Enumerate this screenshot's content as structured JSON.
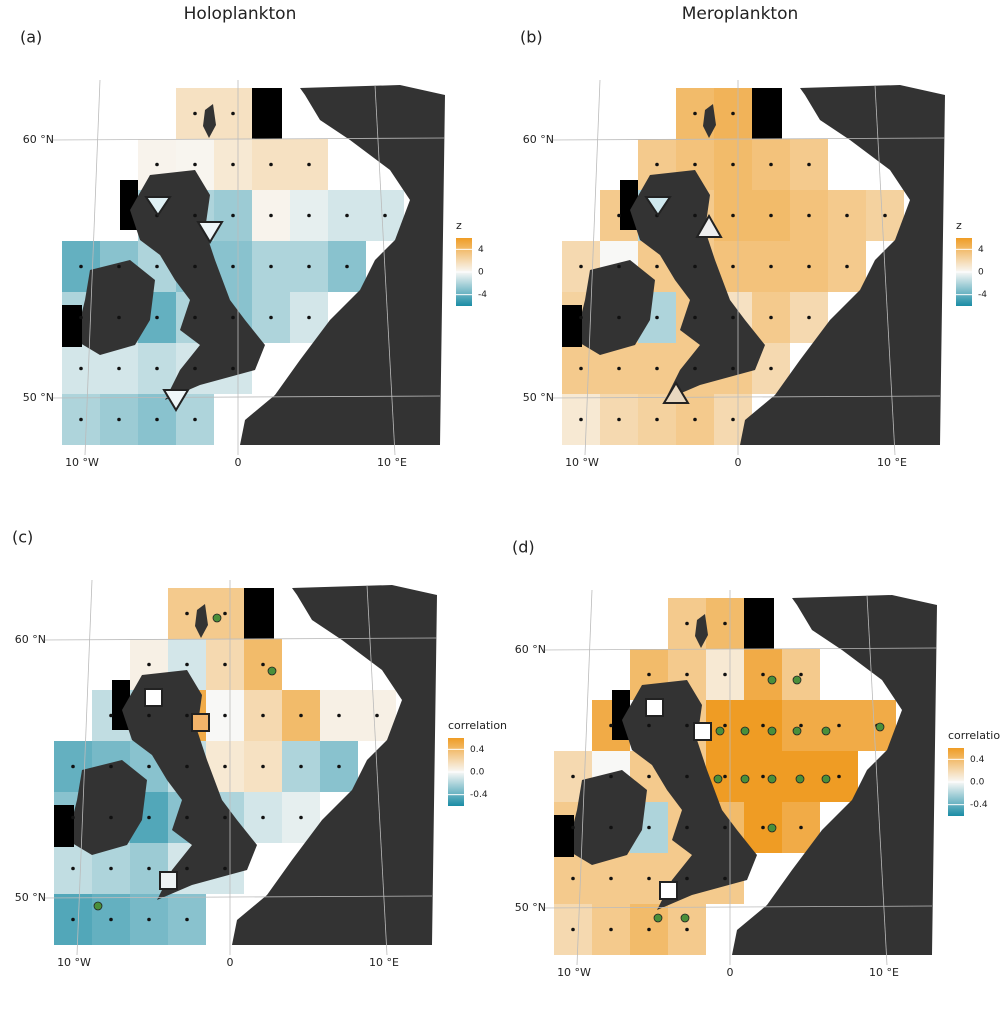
{
  "header": {
    "columns": [
      "Holoplankton",
      "Meroplankton"
    ]
  },
  "panels": [
    {
      "label": "(a)",
      "legend": {
        "title": "z",
        "limits": [
          -6,
          6
        ],
        "ticks": [
          4,
          0,
          -4
        ]
      },
      "axes": {
        "lat_labels": [
          "60 °N",
          "50 °N"
        ],
        "lon_labels": [
          "10 °W",
          "0",
          "10 °E"
        ]
      },
      "cells": [
        [
          null,
          null,
          null,
          1.5,
          1.5,
          null,
          null,
          null,
          null
        ],
        [
          null,
          null,
          0.3,
          0.2,
          1,
          1.5,
          1.5,
          null,
          null
        ],
        [
          null,
          null,
          -2,
          -2,
          -2.5,
          0.3,
          -0.5,
          -1,
          -1
        ],
        [
          -4,
          -3,
          -2,
          -3,
          -3,
          -2,
          -2,
          -3,
          null
        ],
        [
          -2,
          -2,
          -4,
          -2,
          -3,
          -2,
          -1,
          null,
          null
        ],
        [
          -1,
          -1,
          -1.5,
          -1,
          -1,
          null,
          null,
          null,
          null
        ],
        [
          -2,
          -2.5,
          -3,
          -2,
          null,
          null,
          null,
          null,
          null
        ]
      ]
    },
    {
      "label": "(b)",
      "legend": {
        "title": "z",
        "limits": [
          -6,
          6
        ],
        "ticks": [
          4,
          0,
          -4
        ]
      },
      "axes": {
        "lat_labels": [
          "60 °N",
          "50 °N"
        ],
        "lon_labels": [
          "10 °W",
          "0",
          "10 °E"
        ]
      },
      "cells": [
        [
          null,
          null,
          null,
          4,
          4.5,
          null,
          null,
          null,
          null
        ],
        [
          null,
          null,
          3,
          3.5,
          4,
          3.5,
          3,
          null,
          null
        ],
        [
          null,
          3,
          -2,
          3,
          4,
          4,
          3.5,
          3,
          2.5
        ],
        [
          2,
          0,
          3,
          3,
          3.5,
          3.5,
          3.5,
          3,
          null
        ],
        [
          2.5,
          2.5,
          -2,
          3,
          1.5,
          3,
          2,
          null,
          null
        ],
        [
          3,
          3,
          3,
          3,
          3,
          2,
          null,
          null,
          null
        ],
        [
          1,
          2,
          2.5,
          3,
          2,
          null,
          null,
          null,
          null
        ]
      ]
    },
    {
      "label": "(c)",
      "legend": {
        "title": "correlation",
        "limits": [
          -0.6,
          0.6
        ],
        "ticks": [
          0.4,
          {
            "value": 0,
            "label": "0.0"
          },
          -0.4
        ]
      },
      "axes": {
        "lat_labels": [
          "60 °N",
          "50 °N"
        ],
        "lon_labels": [
          "10 °W",
          "0",
          "10 °E"
        ]
      },
      "cells": [
        [
          null,
          null,
          null,
          0.3,
          0.3,
          null,
          null,
          null,
          null
        ],
        [
          null,
          null,
          0.05,
          -0.1,
          0.2,
          0.4,
          null,
          null,
          null
        ],
        [
          null,
          -0.15,
          -0.2,
          0.5,
          0,
          0.2,
          0.4,
          0.05,
          0.05
        ],
        [
          -0.4,
          -0.35,
          -0.3,
          -0.15,
          0.1,
          0.15,
          -0.2,
          -0.3,
          null
        ],
        [
          -0.3,
          -0.3,
          -0.45,
          -0.3,
          -0.2,
          -0.1,
          -0.05,
          null,
          null
        ],
        [
          -0.15,
          -0.2,
          -0.25,
          -0.1,
          -0.1,
          null,
          null,
          null,
          null
        ],
        [
          -0.45,
          -0.4,
          -0.35,
          -0.3,
          null,
          null,
          null,
          null,
          null
        ]
      ]
    },
    {
      "label": "(d)",
      "legend": {
        "title": "correlation",
        "limits": [
          -0.6,
          0.6
        ],
        "ticks": [
          0.4,
          {
            "value": 0,
            "label": "0.0"
          },
          -0.4
        ]
      },
      "axes": {
        "lat_labels": [
          "60 °N",
          "50 °N"
        ],
        "lon_labels": [
          "10 °W",
          "0",
          "10 °E"
        ]
      },
      "cells": [
        [
          null,
          null,
          null,
          0.3,
          0.4,
          null,
          null,
          null,
          null
        ],
        [
          null,
          null,
          0.4,
          0.3,
          0.1,
          0.5,
          0.3,
          null,
          null
        ],
        [
          null,
          0.5,
          0,
          0.3,
          0.6,
          0.6,
          0.5,
          0.5,
          0.5
        ],
        [
          0.2,
          0,
          0.3,
          0.3,
          0.6,
          0.6,
          0.6,
          0.6,
          null
        ],
        [
          0.3,
          0.3,
          -0.2,
          0.3,
          0.4,
          0.6,
          0.5,
          null,
          null
        ],
        [
          0.3,
          0.3,
          0.3,
          0.3,
          0.3,
          null,
          null,
          null,
          null
        ],
        [
          0.2,
          0.3,
          0.4,
          0.3,
          null,
          null,
          null,
          null,
          null
        ]
      ]
    }
  ]
}
